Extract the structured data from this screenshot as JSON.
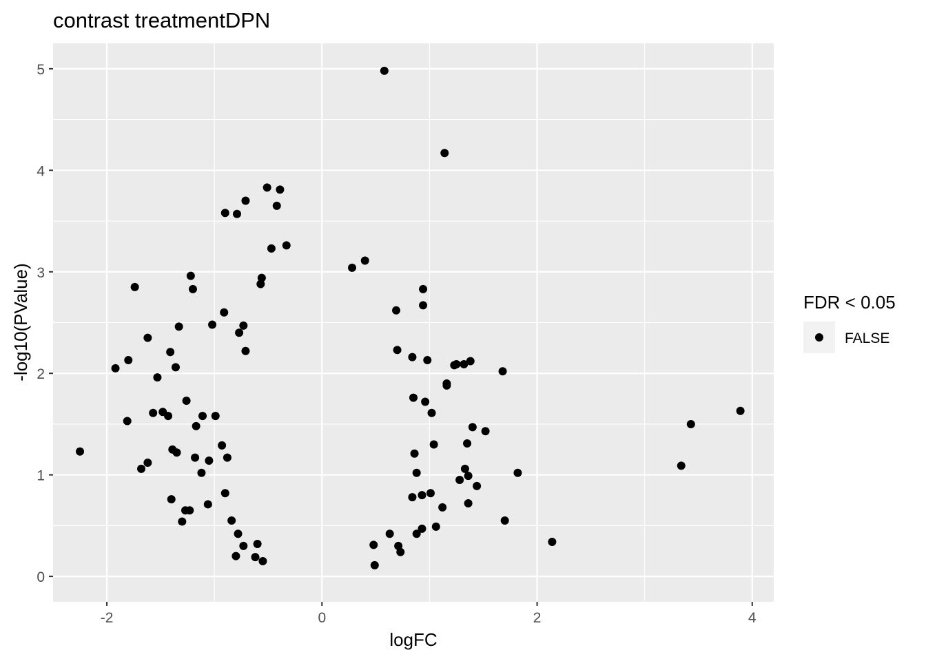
{
  "chart_data": {
    "type": "scatter",
    "title": "contrast treatmentDPN",
    "xlabel": "logFC",
    "ylabel": "-log10(PValue)",
    "xlim": [
      -2.5,
      4.2
    ],
    "ylim": [
      -0.25,
      5.25
    ],
    "xticks": [
      -2,
      0,
      2,
      4
    ],
    "xtick_labels": [
      "-2",
      "0",
      "2",
      "4"
    ],
    "yticks": [
      0,
      1,
      2,
      3,
      4,
      5
    ],
    "ytick_labels": [
      "0",
      "1",
      "2",
      "3",
      "4",
      "5"
    ],
    "grid": true,
    "point_color": "#000000",
    "panel_color": "#ebebeb",
    "legend": {
      "title": "FDR < 0.05",
      "position": "right",
      "entries": [
        {
          "label": "FALSE",
          "color": "#000000"
        }
      ]
    },
    "series": [
      {
        "label": "FALSE",
        "points": [
          [
            0.58,
            4.98
          ],
          [
            1.14,
            4.17
          ],
          [
            -0.51,
            3.83
          ],
          [
            -0.39,
            3.81
          ],
          [
            -0.71,
            3.7
          ],
          [
            -0.42,
            3.65
          ],
          [
            -0.9,
            3.58
          ],
          [
            -0.79,
            3.57
          ],
          [
            -0.33,
            3.26
          ],
          [
            -0.47,
            3.23
          ],
          [
            0.4,
            3.11
          ],
          [
            0.28,
            3.04
          ],
          [
            -1.22,
            2.96
          ],
          [
            -1.2,
            2.83
          ],
          [
            -1.74,
            2.85
          ],
          [
            0.94,
            2.83
          ],
          [
            -0.56,
            2.94
          ],
          [
            -0.57,
            2.88
          ],
          [
            0.94,
            2.67
          ],
          [
            0.69,
            2.62
          ],
          [
            -0.91,
            2.6
          ],
          [
            -1.33,
            2.46
          ],
          [
            -1.02,
            2.48
          ],
          [
            -0.73,
            2.47
          ],
          [
            -0.77,
            2.4
          ],
          [
            -1.62,
            2.35
          ],
          [
            -1.41,
            2.21
          ],
          [
            -1.8,
            2.13
          ],
          [
            -1.92,
            2.05
          ],
          [
            -1.53,
            1.96
          ],
          [
            -1.36,
            2.06
          ],
          [
            -0.71,
            2.22
          ],
          [
            0.7,
            2.23
          ],
          [
            0.98,
            2.13
          ],
          [
            1.23,
            2.08
          ],
          [
            1.25,
            2.09
          ],
          [
            1.38,
            2.12
          ],
          [
            1.68,
            2.02
          ],
          [
            1.32,
            2.09
          ],
          [
            0.84,
            2.16
          ],
          [
            -1.81,
            1.53
          ],
          [
            -1.57,
            1.61
          ],
          [
            -1.48,
            1.62
          ],
          [
            -1.43,
            1.58
          ],
          [
            -1.26,
            1.73
          ],
          [
            -1.11,
            1.58
          ],
          [
            -1.17,
            1.48
          ],
          [
            -0.99,
            1.58
          ],
          [
            1.52,
            1.43
          ],
          [
            1.4,
            1.47
          ],
          [
            1.16,
            1.88
          ],
          [
            1.16,
            1.9
          ],
          [
            1.02,
            1.61
          ],
          [
            0.96,
            1.72
          ],
          [
            0.85,
            1.76
          ],
          [
            1.35,
            1.31
          ],
          [
            -2.25,
            1.23
          ],
          [
            -1.68,
            1.06
          ],
          [
            -1.62,
            1.12
          ],
          [
            -1.39,
            1.25
          ],
          [
            -1.35,
            1.22
          ],
          [
            -1.4,
            0.76
          ],
          [
            -1.27,
            0.65
          ],
          [
            -1.23,
            0.65
          ],
          [
            -1.3,
            0.54
          ],
          [
            -1.18,
            1.17
          ],
          [
            -1.12,
            1.02
          ],
          [
            -1.05,
            1.14
          ],
          [
            -0.93,
            1.29
          ],
          [
            -0.88,
            1.17
          ],
          [
            0.86,
            1.21
          ],
          [
            0.88,
            1.02
          ],
          [
            1.04,
            1.3
          ],
          [
            1.12,
            0.68
          ],
          [
            1.28,
            0.95
          ],
          [
            1.33,
            1.06
          ],
          [
            1.36,
            0.99
          ],
          [
            1.44,
            0.89
          ],
          [
            1.36,
            0.72
          ],
          [
            1.82,
            1.02
          ],
          [
            1.7,
            0.55
          ],
          [
            2.14,
            0.34
          ],
          [
            3.34,
            1.09
          ],
          [
            3.43,
            1.5
          ],
          [
            3.89,
            1.63
          ],
          [
            -0.9,
            0.82
          ],
          [
            -0.78,
            0.42
          ],
          [
            -0.73,
            0.3
          ],
          [
            -0.62,
            0.19
          ],
          [
            -0.55,
            0.15
          ],
          [
            -0.6,
            0.32
          ],
          [
            0.48,
            0.31
          ],
          [
            0.49,
            0.11
          ],
          [
            0.63,
            0.42
          ],
          [
            0.73,
            0.24
          ],
          [
            0.71,
            0.3
          ],
          [
            0.88,
            0.42
          ],
          [
            0.93,
            0.47
          ],
          [
            1.06,
            0.49
          ],
          [
            0.84,
            0.78
          ],
          [
            0.93,
            0.8
          ],
          [
            1.01,
            0.82
          ],
          [
            -1.06,
            0.71
          ],
          [
            -0.84,
            0.55
          ],
          [
            -0.8,
            0.2
          ]
        ]
      }
    ]
  }
}
